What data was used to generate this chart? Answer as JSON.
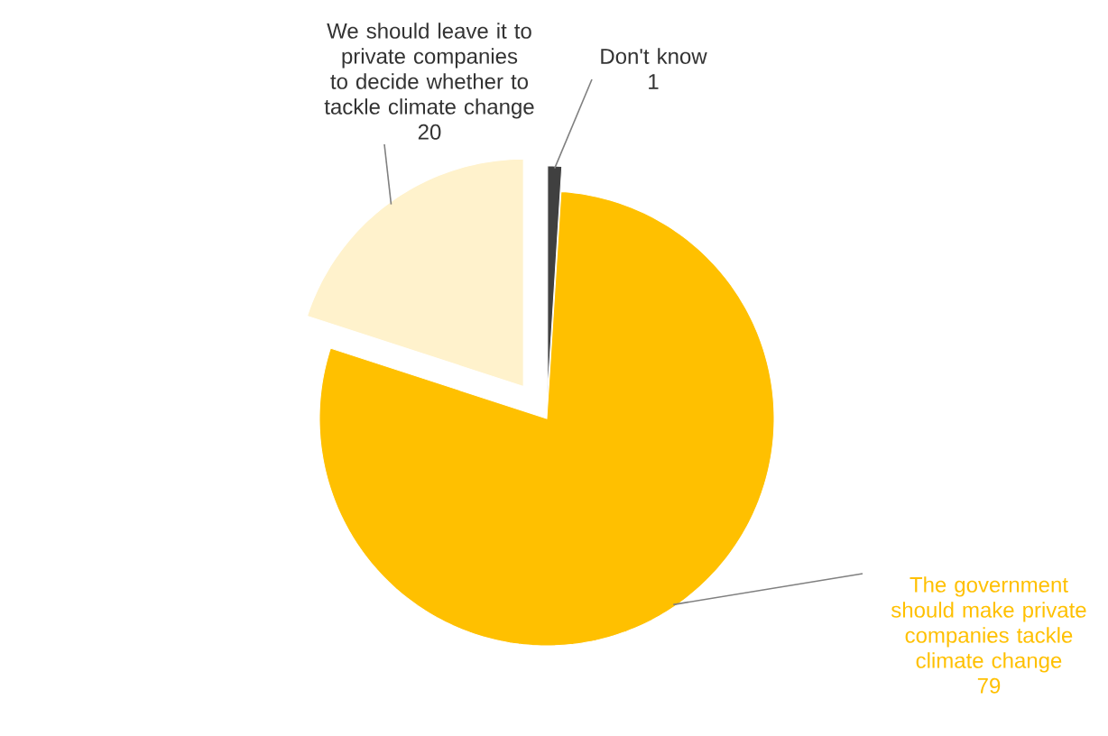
{
  "chart_data": {
    "type": "pie",
    "categories": [
      "Don't know",
      "The government should make private companies tackle climate change",
      "We should leave it to private companies to decide whether to tackle climate change"
    ],
    "values": [
      1,
      79,
      20
    ],
    "colors": [
      "#404040",
      "#ffc000",
      "#fff2cc"
    ],
    "data_labels": true
  }
}
